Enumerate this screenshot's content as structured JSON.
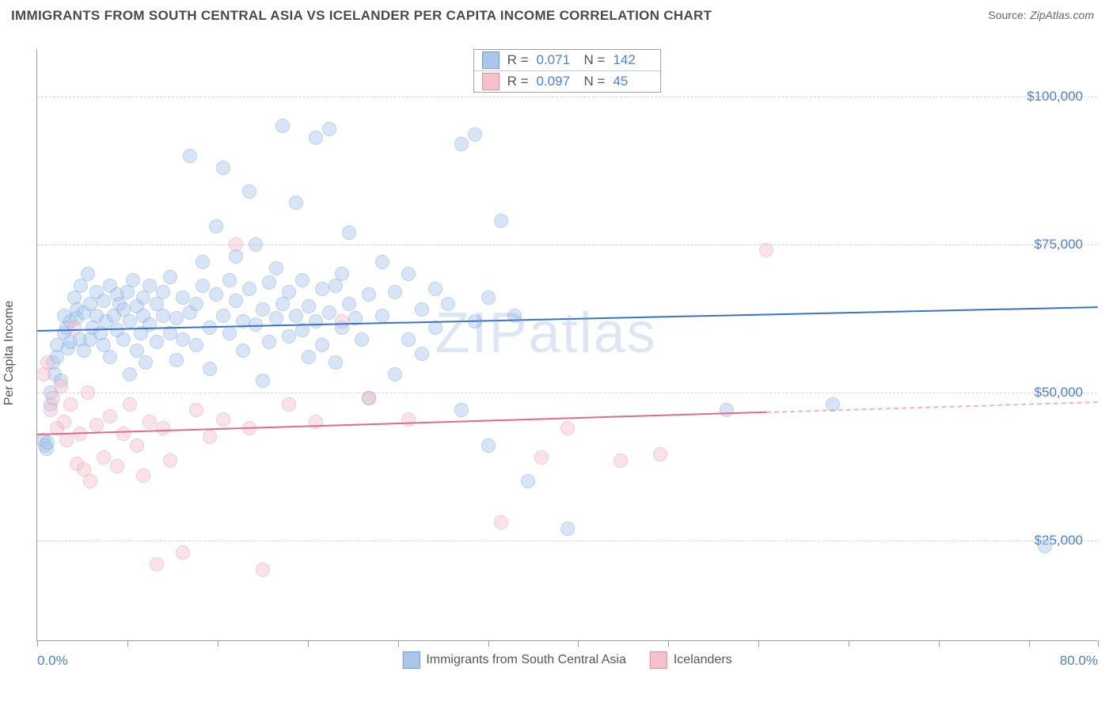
{
  "title": "IMMIGRANTS FROM SOUTH CENTRAL ASIA VS ICELANDER PER CAPITA INCOME CORRELATION CHART",
  "source_label": "Source:",
  "source_name": "ZipAtlas.com",
  "watermark": "ZIPatlas",
  "chart": {
    "type": "scatter",
    "background_color": "#ffffff",
    "grid_color": "#d5d5d5",
    "axis_color": "#9e9e9e",
    "value_text_color": "#4a80d6",
    "label_text_color": "#555555",
    "ylabel": "Per Capita Income",
    "xlim": [
      0,
      80
    ],
    "ylim": [
      8000,
      108000
    ],
    "ytick_values": [
      25000,
      50000,
      75000,
      100000
    ],
    "ytick_labels": [
      "$25,000",
      "$50,000",
      "$75,000",
      "$100,000"
    ],
    "xtick_positions": [
      0,
      6.8,
      13.6,
      20.4,
      27.2,
      34.0,
      40.8,
      47.6,
      54.4,
      61.2,
      68.0,
      74.8,
      80.0
    ],
    "xtick_labels_shown": {
      "0": "0.0%",
      "80": "80.0%"
    },
    "marker_radius": 9,
    "marker_opacity": 0.45,
    "series": [
      {
        "name": "Immigrants from South Central Asia",
        "key": "s1",
        "fill_color": "#a9c7ec",
        "stroke_color": "#6b9cd8",
        "trend_color": "#3b72c9",
        "R": "0.071",
        "N": "142",
        "trend_y_at_xmin": 60500,
        "trend_y_at_xmax": 64500,
        "points": [
          [
            0.5,
            42000
          ],
          [
            0.6,
            41000
          ],
          [
            0.7,
            40500
          ],
          [
            0.8,
            41500
          ],
          [
            1.0,
            48000
          ],
          [
            1.0,
            50000
          ],
          [
            1.2,
            55000
          ],
          [
            1.3,
            53000
          ],
          [
            1.5,
            56000
          ],
          [
            1.5,
            58000
          ],
          [
            1.8,
            52000
          ],
          [
            2.0,
            60000
          ],
          [
            2.0,
            63000
          ],
          [
            2.2,
            61000
          ],
          [
            2.3,
            57500
          ],
          [
            2.5,
            62000
          ],
          [
            2.5,
            58500
          ],
          [
            2.8,
            66000
          ],
          [
            3.0,
            64000
          ],
          [
            3.0,
            62500
          ],
          [
            3.2,
            59000
          ],
          [
            3.3,
            68000
          ],
          [
            3.5,
            63500
          ],
          [
            3.5,
            57000
          ],
          [
            3.8,
            70000
          ],
          [
            4.0,
            59000
          ],
          [
            4.0,
            65000
          ],
          [
            4.2,
            61000
          ],
          [
            4.5,
            67000
          ],
          [
            4.5,
            63000
          ],
          [
            4.8,
            60000
          ],
          [
            5.0,
            65500
          ],
          [
            5.0,
            58000
          ],
          [
            5.2,
            62000
          ],
          [
            5.5,
            68000
          ],
          [
            5.5,
            56000
          ],
          [
            5.8,
            63000
          ],
          [
            6.0,
            66500
          ],
          [
            6.0,
            60500
          ],
          [
            6.2,
            65000
          ],
          [
            6.5,
            59000
          ],
          [
            6.5,
            64000
          ],
          [
            6.8,
            67000
          ],
          [
            7.0,
            62000
          ],
          [
            7.0,
            53000
          ],
          [
            7.2,
            69000
          ],
          [
            7.5,
            64500
          ],
          [
            7.5,
            57000
          ],
          [
            7.8,
            60000
          ],
          [
            8.0,
            66000
          ],
          [
            8.0,
            63000
          ],
          [
            8.2,
            55000
          ],
          [
            8.5,
            68000
          ],
          [
            8.5,
            61500
          ],
          [
            9.0,
            65000
          ],
          [
            9.0,
            58500
          ],
          [
            9.5,
            63000
          ],
          [
            9.5,
            67000
          ],
          [
            10.0,
            60000
          ],
          [
            10.0,
            69500
          ],
          [
            10.5,
            62500
          ],
          [
            10.5,
            55500
          ],
          [
            11.0,
            66000
          ],
          [
            11.0,
            59000
          ],
          [
            11.5,
            63500
          ],
          [
            11.5,
            90000
          ],
          [
            12.0,
            65000
          ],
          [
            12.0,
            58000
          ],
          [
            12.5,
            68000
          ],
          [
            12.5,
            72000
          ],
          [
            13.0,
            61000
          ],
          [
            13.0,
            54000
          ],
          [
            13.5,
            66500
          ],
          [
            13.5,
            78000
          ],
          [
            14.0,
            63000
          ],
          [
            14.0,
            88000
          ],
          [
            14.5,
            69000
          ],
          [
            14.5,
            60000
          ],
          [
            15.0,
            65500
          ],
          [
            15.0,
            73000
          ],
          [
            15.5,
            62000
          ],
          [
            15.5,
            57000
          ],
          [
            16.0,
            67500
          ],
          [
            16.0,
            84000
          ],
          [
            16.5,
            61500
          ],
          [
            16.5,
            75000
          ],
          [
            17.0,
            64000
          ],
          [
            17.0,
            52000
          ],
          [
            17.5,
            68500
          ],
          [
            17.5,
            58500
          ],
          [
            18.0,
            62500
          ],
          [
            18.0,
            71000
          ],
          [
            18.5,
            65000
          ],
          [
            18.5,
            95000
          ],
          [
            19.0,
            59500
          ],
          [
            19.0,
            67000
          ],
          [
            19.5,
            63000
          ],
          [
            19.5,
            82000
          ],
          [
            20.0,
            60500
          ],
          [
            20.0,
            69000
          ],
          [
            20.5,
            56000
          ],
          [
            20.5,
            64500
          ],
          [
            21.0,
            62000
          ],
          [
            21.0,
            93000
          ],
          [
            21.5,
            67500
          ],
          [
            21.5,
            58000
          ],
          [
            22.0,
            94500
          ],
          [
            22.0,
            63500
          ],
          [
            22.5,
            68000
          ],
          [
            22.5,
            55000
          ],
          [
            23.0,
            61000
          ],
          [
            23.0,
            70000
          ],
          [
            23.5,
            65000
          ],
          [
            23.5,
            77000
          ],
          [
            24.0,
            62500
          ],
          [
            24.5,
            59000
          ],
          [
            25.0,
            66500
          ],
          [
            25.0,
            49000
          ],
          [
            26.0,
            63000
          ],
          [
            26.0,
            72000
          ],
          [
            27.0,
            67000
          ],
          [
            27.0,
            53000
          ],
          [
            28.0,
            59000
          ],
          [
            28.0,
            70000
          ],
          [
            29.0,
            64000
          ],
          [
            29.0,
            56500
          ],
          [
            30.0,
            67500
          ],
          [
            30.0,
            61000
          ],
          [
            31.0,
            65000
          ],
          [
            32.0,
            47000
          ],
          [
            32.0,
            92000
          ],
          [
            33.0,
            62000
          ],
          [
            33.0,
            93500
          ],
          [
            34.0,
            66000
          ],
          [
            34.0,
            41000
          ],
          [
            35.0,
            79000
          ],
          [
            36.0,
            63000
          ],
          [
            37.0,
            35000
          ],
          [
            40.0,
            27000
          ],
          [
            52.0,
            47000
          ],
          [
            76.0,
            24000
          ],
          [
            60.0,
            48000
          ]
        ]
      },
      {
        "name": "Icelanders",
        "key": "s2",
        "fill_color": "#f4c2cd",
        "stroke_color": "#e48ba0",
        "trend_color": "#e06b87",
        "R": "0.097",
        "N": "45",
        "trend_y_at_xmin": 43000,
        "trend_y_at_xmax": 48500,
        "trend_solid_until": 55,
        "points": [
          [
            0.5,
            53000
          ],
          [
            0.8,
            55000
          ],
          [
            1.0,
            47000
          ],
          [
            1.2,
            49000
          ],
          [
            1.5,
            44000
          ],
          [
            1.8,
            51000
          ],
          [
            2.0,
            45000
          ],
          [
            2.2,
            42000
          ],
          [
            2.5,
            48000
          ],
          [
            2.8,
            61000
          ],
          [
            3.0,
            38000
          ],
          [
            3.2,
            43000
          ],
          [
            3.5,
            37000
          ],
          [
            3.8,
            50000
          ],
          [
            4.0,
            35000
          ],
          [
            4.5,
            44500
          ],
          [
            5.0,
            39000
          ],
          [
            5.5,
            46000
          ],
          [
            6.0,
            37500
          ],
          [
            6.5,
            43000
          ],
          [
            7.0,
            48000
          ],
          [
            7.5,
            41000
          ],
          [
            8.0,
            36000
          ],
          [
            8.5,
            45000
          ],
          [
            9.0,
            21000
          ],
          [
            9.5,
            44000
          ],
          [
            10.0,
            38500
          ],
          [
            11.0,
            23000
          ],
          [
            12.0,
            47000
          ],
          [
            13.0,
            42500
          ],
          [
            14.0,
            45500
          ],
          [
            15.0,
            75000
          ],
          [
            16.0,
            44000
          ],
          [
            17.0,
            20000
          ],
          [
            19.0,
            48000
          ],
          [
            21.0,
            45000
          ],
          [
            23.0,
            62000
          ],
          [
            25.0,
            49000
          ],
          [
            28.0,
            45500
          ],
          [
            35.0,
            28000
          ],
          [
            38.0,
            39000
          ],
          [
            40.0,
            44000
          ],
          [
            44.0,
            38500
          ],
          [
            47.0,
            39500
          ],
          [
            55.0,
            74000
          ]
        ]
      }
    ]
  }
}
